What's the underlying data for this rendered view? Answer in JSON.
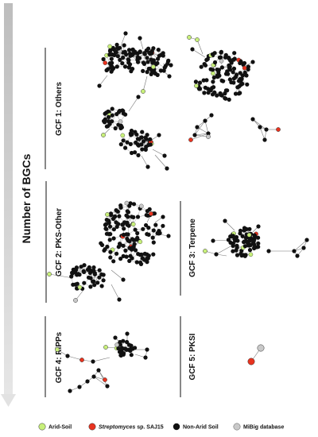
{
  "axis_label": "Number of BGCs",
  "panels": [
    {
      "id": "gcf1",
      "label": "GCF 1: Others"
    },
    {
      "id": "gcf2",
      "label": "GCF 2: PKS-Other"
    },
    {
      "id": "gcf3",
      "label": "GCF 3: Terpene"
    },
    {
      "id": "gcf4",
      "label": "GCF 4: RiPPs"
    },
    {
      "id": "gcf5",
      "label": "GCF 5: PKSI"
    }
  ],
  "legend": [
    {
      "label": "Arid-Soil",
      "italic": "",
      "rest": "",
      "color": "#c8f07a"
    },
    {
      "label": "",
      "italic": "Streptomyces",
      "rest": " sp. SAJ15",
      "color": "#e8331f"
    },
    {
      "label": "Non-Arid Soil",
      "italic": "",
      "rest": "",
      "color": "#111111"
    },
    {
      "label": "MiBig database",
      "italic": "",
      "rest": "",
      "color": "#c9c9c9"
    }
  ],
  "colors": {
    "arid": "#c8f07a",
    "saj15": "#e8331f",
    "nonarid": "#111111",
    "mibig": "#c9c9c9",
    "edge": "#777777",
    "arrow": "#d6d6d6"
  }
}
